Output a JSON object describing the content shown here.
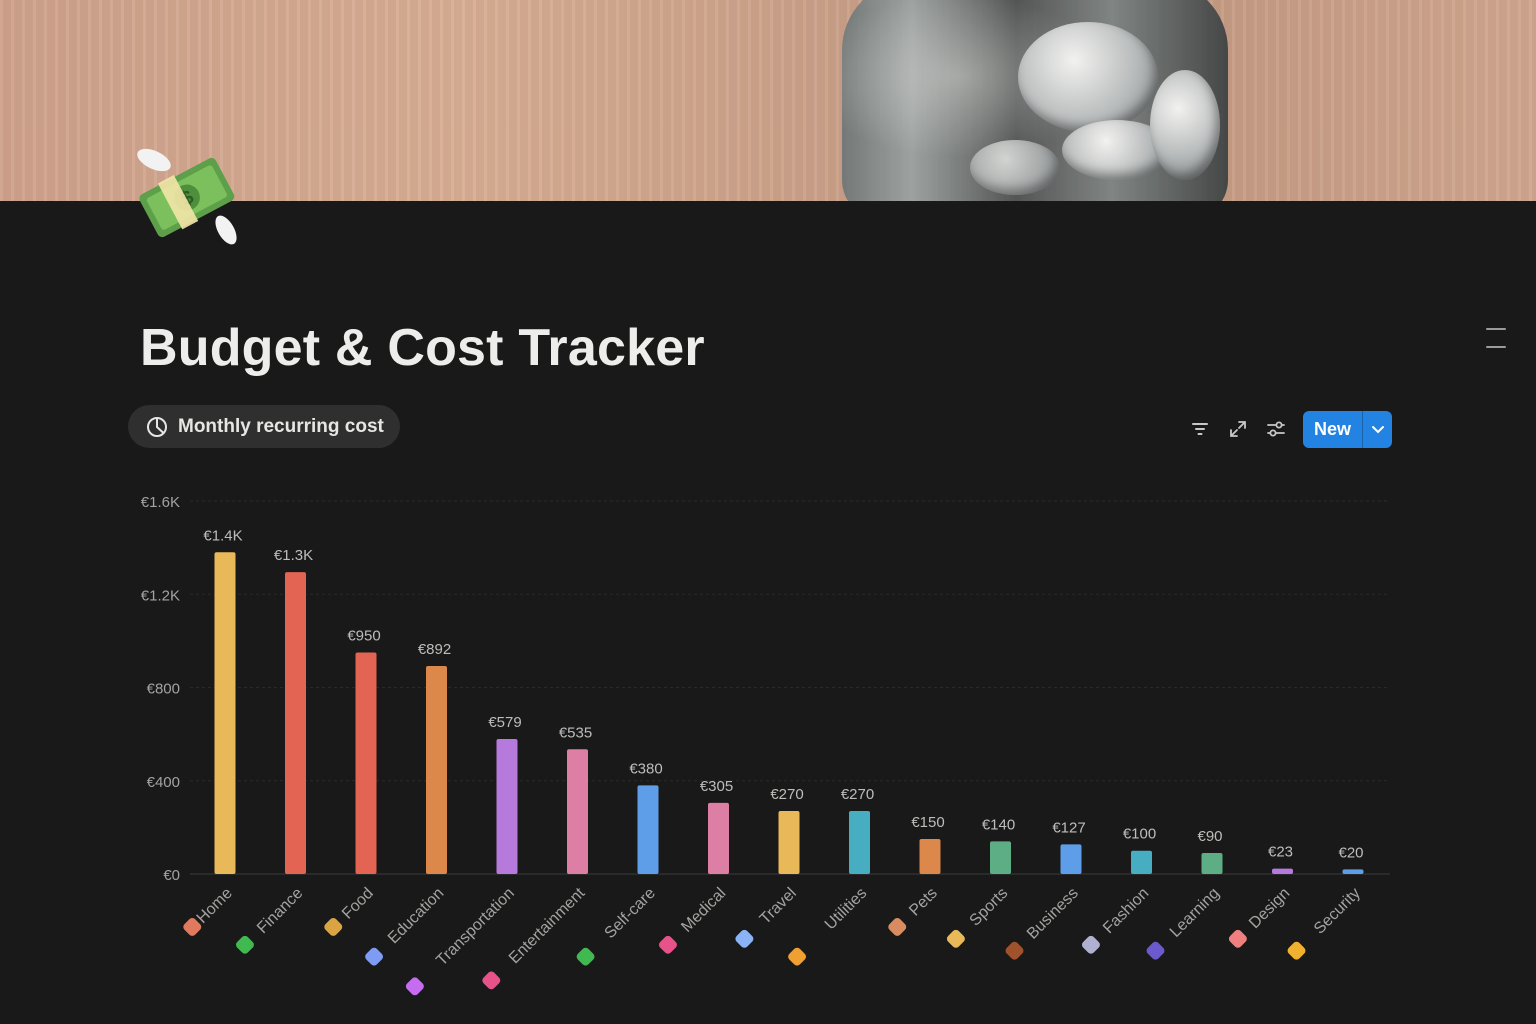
{
  "page": {
    "title": "Budget & Cost Tracker",
    "icon": "money-with-wings-icon"
  },
  "cover": {
    "description": "jar-of-coins-icon"
  },
  "view_tab": {
    "icon": "chart-icon",
    "label": "Monthly recurring cost"
  },
  "toolbar": {
    "filter_icon": "filter-icon",
    "expand_icon": "expand-icon",
    "settings_icon": "sliders-icon",
    "new_label": "New",
    "new_menu_icon": "chevron-down-icon"
  },
  "colors": {
    "accent": "#2383e2",
    "background": "#191919"
  },
  "chart_data": {
    "type": "bar",
    "categories": [
      "Home",
      "Finance",
      "Food",
      "Education",
      "Transportation",
      "Entertainment",
      "Self-care",
      "Medical",
      "Travel",
      "Utilities",
      "Pets",
      "Sports",
      "Business",
      "Fashion",
      "Learning",
      "Design",
      "Security"
    ],
    "category_icons": [
      "house-icon",
      "money-bag-icon",
      "burger-icon",
      "books-icon",
      "scooter-icon",
      "ticket-icon",
      "clover-icon",
      "pill-icon",
      "airplane-icon",
      "lightning-icon",
      "dog-icon",
      "runner-icon",
      "briefcase-icon",
      "sneaker-icon",
      "graduation-cap-icon",
      "palette-icon",
      "lock-icon"
    ],
    "values": [
      1380,
      1295,
      950,
      892,
      579,
      535,
      380,
      305,
      270,
      270,
      150,
      140,
      127,
      100,
      90,
      23,
      20
    ],
    "data_labels": [
      "€1.4K",
      "€1.3K",
      "€950",
      "€892",
      "€579",
      "€535",
      "€380",
      "€305",
      "€270",
      "€270",
      "€150",
      "€140",
      "€127",
      "€100",
      "€90",
      "€23",
      "€20"
    ],
    "colors": [
      "#e9b959",
      "#e36453",
      "#e36453",
      "#dc884a",
      "#b679dc",
      "#dd7fa4",
      "#5e9ee8",
      "#dd7fa4",
      "#e9b959",
      "#46aec0",
      "#dc884a",
      "#5dae84",
      "#5e9ee8",
      "#46aec0",
      "#5dae84",
      "#b679dc",
      "#5e9ee8"
    ],
    "ylim": [
      0,
      1600
    ],
    "yticks": [
      0,
      400,
      800,
      1200,
      1600
    ],
    "ytick_labels": [
      "€0",
      "€400",
      "€800",
      "€1.2K",
      "€1.6K"
    ],
    "grid": true,
    "legend": "none"
  }
}
